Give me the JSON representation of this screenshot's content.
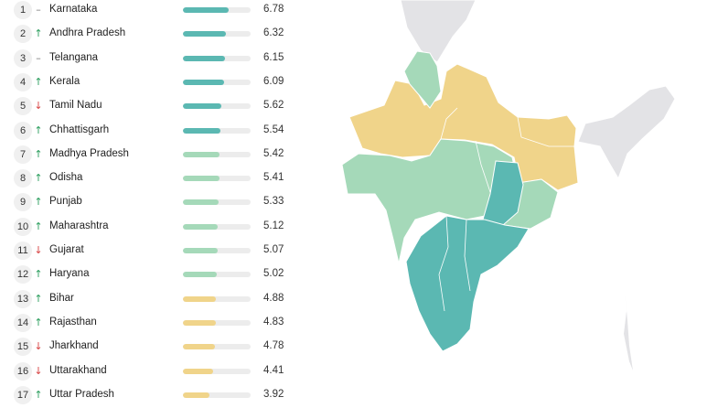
{
  "colors": {
    "teal": "#5bb8b2",
    "green": "#a5d9b9",
    "yellow": "#f0d48a",
    "grey": "#e3e3e6",
    "trend_up": "#2a9d5c",
    "trend_down": "#d84545",
    "trend_flat": "#777777"
  },
  "scale_max": 10,
  "rankings": [
    {
      "rank": "1",
      "trend": "–",
      "trend_icon": "dash-icon",
      "state": "Karnataka",
      "score": "6.78",
      "value": 6.78,
      "tier": "teal"
    },
    {
      "rank": "2",
      "trend": "↑",
      "trend_icon": "arrow-up-icon",
      "state": "Andhra Pradesh",
      "score": "6.32",
      "value": 6.32,
      "tier": "teal"
    },
    {
      "rank": "3",
      "trend": "–",
      "trend_icon": "dash-icon",
      "state": "Telangana",
      "score": "6.15",
      "value": 6.15,
      "tier": "teal"
    },
    {
      "rank": "4",
      "trend": "↑",
      "trend_icon": "arrow-up-icon",
      "state": "Kerala",
      "score": "6.09",
      "value": 6.09,
      "tier": "teal"
    },
    {
      "rank": "5",
      "trend": "↓",
      "trend_icon": "arrow-down-icon",
      "state": "Tamil Nadu",
      "score": "5.62",
      "value": 5.62,
      "tier": "teal"
    },
    {
      "rank": "6",
      "trend": "↑",
      "trend_icon": "arrow-up-icon",
      "state": "Chhattisgarh",
      "score": "5.54",
      "value": 5.54,
      "tier": "teal"
    },
    {
      "rank": "7",
      "trend": "↑",
      "trend_icon": "arrow-up-icon",
      "state": "Madhya Pradesh",
      "score": "5.42",
      "value": 5.42,
      "tier": "green"
    },
    {
      "rank": "8",
      "trend": "↑",
      "trend_icon": "arrow-up-icon",
      "state": "Odisha",
      "score": "5.41",
      "value": 5.41,
      "tier": "green"
    },
    {
      "rank": "9",
      "trend": "↑",
      "trend_icon": "arrow-up-icon",
      "state": "Punjab",
      "score": "5.33",
      "value": 5.33,
      "tier": "green"
    },
    {
      "rank": "10",
      "trend": "↑",
      "trend_icon": "arrow-up-icon",
      "state": "Maharashtra",
      "score": "5.12",
      "value": 5.12,
      "tier": "green"
    },
    {
      "rank": "11",
      "trend": "↓",
      "trend_icon": "arrow-down-icon",
      "state": "Gujarat",
      "score": "5.07",
      "value": 5.07,
      "tier": "green"
    },
    {
      "rank": "12",
      "trend": "↑",
      "trend_icon": "arrow-up-icon",
      "state": "Haryana",
      "score": "5.02",
      "value": 5.02,
      "tier": "green"
    },
    {
      "rank": "13",
      "trend": "↑",
      "trend_icon": "arrow-up-icon",
      "state": "Bihar",
      "score": "4.88",
      "value": 4.88,
      "tier": "yellow"
    },
    {
      "rank": "14",
      "trend": "↑",
      "trend_icon": "arrow-up-icon",
      "state": "Rajasthan",
      "score": "4.83",
      "value": 4.83,
      "tier": "yellow"
    },
    {
      "rank": "15",
      "trend": "↓",
      "trend_icon": "arrow-down-icon",
      "state": "Jharkhand",
      "score": "4.78",
      "value": 4.78,
      "tier": "yellow"
    },
    {
      "rank": "16",
      "trend": "↓",
      "trend_icon": "arrow-down-icon",
      "state": "Uttarakhand",
      "score": "4.41",
      "value": 4.41,
      "tier": "yellow"
    },
    {
      "rank": "17",
      "trend": "↑",
      "trend_icon": "arrow-up-icon",
      "state": "Uttar Pradesh",
      "score": "3.92",
      "value": 3.92,
      "tier": "yellow"
    }
  ]
}
